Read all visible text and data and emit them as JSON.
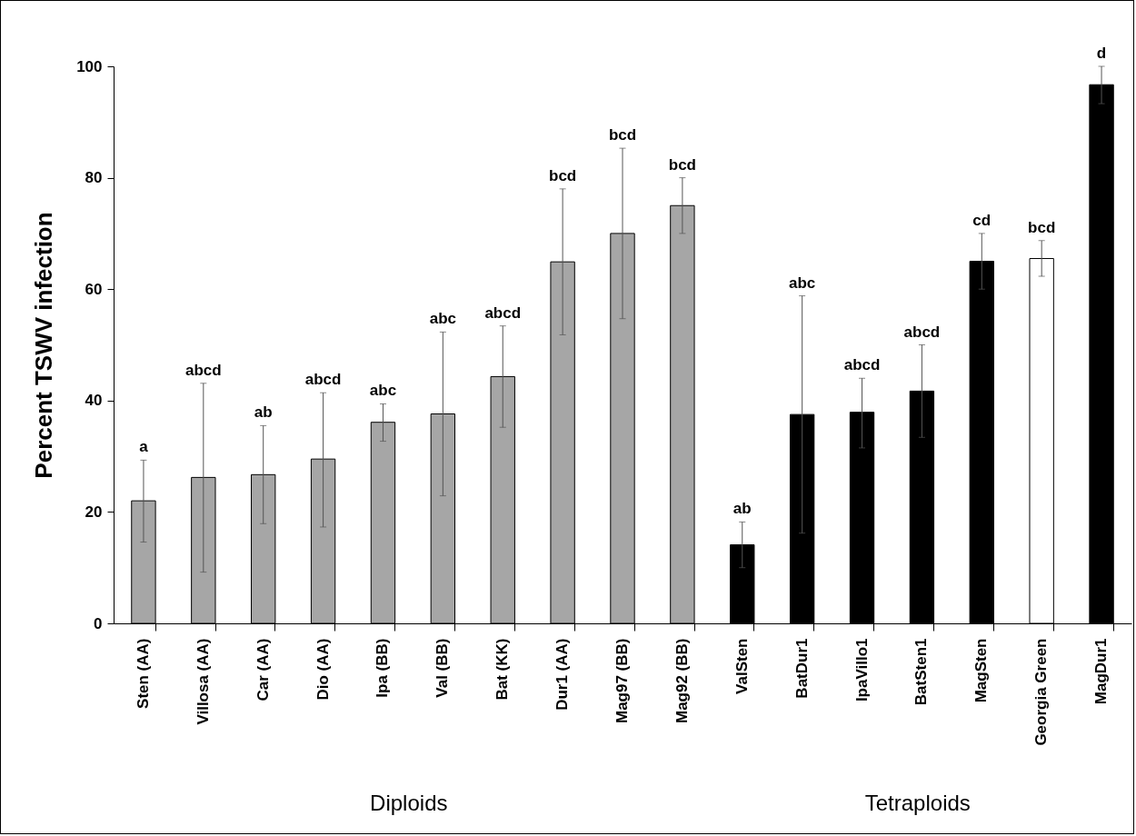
{
  "chart_data": {
    "type": "bar",
    "ylabel": "Percent TSWV infection",
    "categories": [
      "Sten (AA)",
      "Villosa (AA)",
      "Car (AA)",
      "Dio (AA)",
      "Ipa (BB)",
      "Val (BB)",
      "Bat (KK)",
      "Dur1 (AA)",
      "Mag97 (BB)",
      "Mag92 (BB)",
      "ValSten",
      "BatDur1",
      "IpaVillo1",
      "BatSten1",
      "MagSten",
      "Georgia Green",
      "MagDur1"
    ],
    "values": [
      22.0,
      26.2,
      26.7,
      29.5,
      36.1,
      37.6,
      44.3,
      64.9,
      70.0,
      75.0,
      14.1,
      37.5,
      37.9,
      41.7,
      65.0,
      65.5,
      96.7
    ],
    "errors": [
      [
        14.6,
        29.3
      ],
      [
        9.2,
        43.1
      ],
      [
        17.9,
        35.5
      ],
      [
        17.3,
        41.4
      ],
      [
        32.7,
        39.4
      ],
      [
        22.9,
        52.3
      ],
      [
        35.2,
        53.4
      ],
      [
        51.8,
        78.0
      ],
      [
        54.7,
        85.3
      ],
      [
        70.0,
        80.0
      ],
      [
        10.0,
        18.2
      ],
      [
        16.2,
        58.8
      ],
      [
        31.5,
        44.0
      ],
      [
        33.4,
        50.0
      ],
      [
        60.0,
        70.0
      ],
      [
        62.3,
        68.7
      ],
      [
        93.3,
        100.0
      ]
    ],
    "colors": [
      "#a6a6a6",
      "#a6a6a6",
      "#a6a6a6",
      "#a6a6a6",
      "#a6a6a6",
      "#a6a6a6",
      "#a6a6a6",
      "#a6a6a6",
      "#a6a6a6",
      "#a6a6a6",
      "#000000",
      "#000000",
      "#000000",
      "#000000",
      "#000000",
      "#ffffff",
      "#000000"
    ],
    "ylim": [
      0,
      100
    ],
    "yticks": [
      0,
      20,
      40,
      60,
      80,
      100
    ],
    "annotations": [
      {
        "text": "a",
        "x": "Sten (AA)",
        "y": 29.3
      },
      {
        "text": "abcd",
        "x": "Villosa (AA)",
        "y": 43.1
      },
      {
        "text": "ab",
        "x": "Car (AA)",
        "y": 35.5
      },
      {
        "text": "abcd",
        "x": "Dio (AA)",
        "y": 41.4
      },
      {
        "text": "abc",
        "x": "Ipa (BB)",
        "y": 39.4
      },
      {
        "text": "abc",
        "x": "Val (BB)",
        "y": 52.3
      },
      {
        "text": "abcd",
        "x": "Bat (KK)",
        "y": 53.4
      },
      {
        "text": "bcd",
        "x": "Dur1 (AA)",
        "y": 78.0
      },
      {
        "text": "bcd",
        "x": "Mag97 (BB)",
        "y": 85.3
      },
      {
        "text": "bcd",
        "x": "Mag92 (BB)",
        "y": 80.0
      },
      {
        "text": "ab",
        "x": "ValSten",
        "y": 18.2
      },
      {
        "text": "abc",
        "x": "BatDur1",
        "y": 58.8
      },
      {
        "text": "abcd",
        "x": "IpaVillo1",
        "y": 44.0
      },
      {
        "text": "abcd",
        "x": "BatSten1",
        "y": 50.0
      },
      {
        "text": "cd",
        "x": "MagSten",
        "y": 70.0
      },
      {
        "text": "bcd",
        "x": "Georgia Green",
        "y": 68.7
      },
      {
        "text": "d",
        "x": "MagDur1",
        "y": 100.0
      },
      "Diploids",
      "Tetraploids"
    ]
  }
}
